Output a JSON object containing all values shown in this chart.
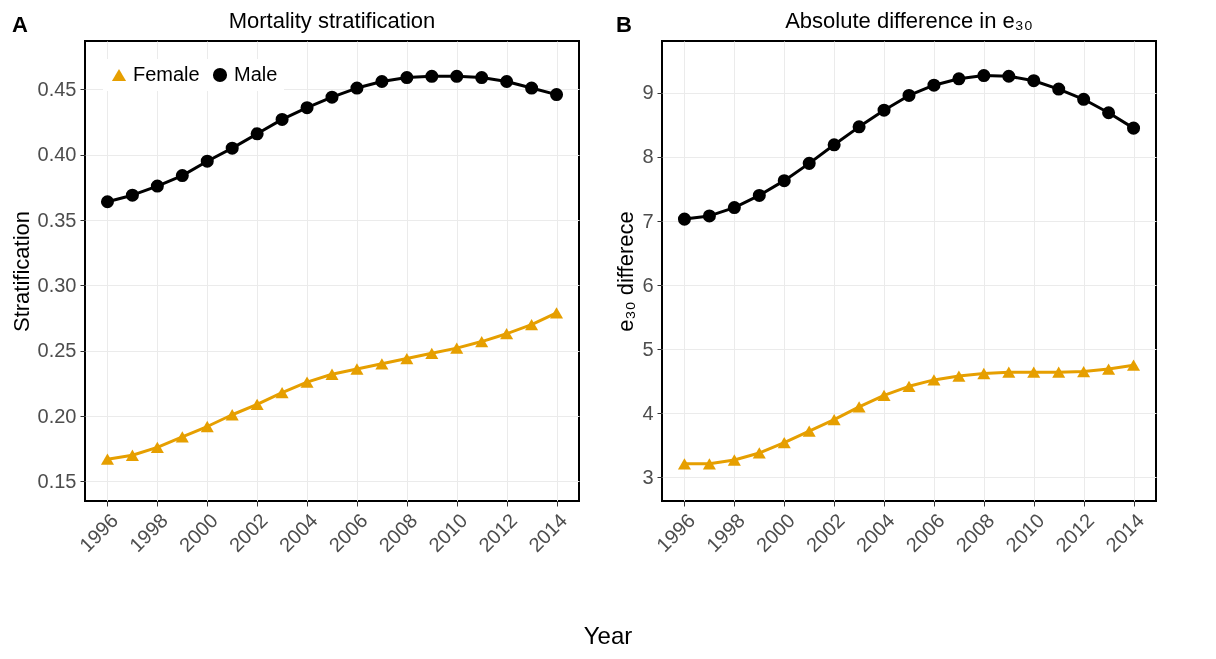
{
  "chart_data": [
    {
      "type": "line",
      "title": "Mortality stratification",
      "xlabel": "Year",
      "ylabel": "Stratification",
      "annotations": [
        "A"
      ],
      "legend": "top left",
      "grid": true,
      "x": [
        1996,
        1997,
        1998,
        1999,
        2000,
        2001,
        2002,
        2003,
        2004,
        2005,
        2006,
        2007,
        2008,
        2009,
        2010,
        2011,
        2012,
        2013,
        2014
      ],
      "xlim": [
        1995.1,
        2014.9
      ],
      "xticks": [
        1996,
        1998,
        2000,
        2002,
        2004,
        2006,
        2008,
        2010,
        2012,
        2014
      ],
      "ylim": [
        0.135,
        0.487
      ],
      "yticks": [
        0.15,
        {
          "value": 0.2,
          "label": "0.20"
        },
        0.25,
        {
          "value": 0.3,
          "label": "0.30"
        },
        0.35,
        {
          "value": 0.4,
          "label": "0.40"
        },
        0.45
      ],
      "series": [
        {
          "name": "Female",
          "color": "#e69f00",
          "marker": "triangle",
          "values": [
            0.167,
            0.17,
            0.176,
            0.184,
            0.192,
            0.201,
            0.209,
            0.218,
            0.226,
            0.232,
            0.236,
            0.24,
            0.244,
            0.248,
            0.252,
            0.257,
            0.263,
            0.27,
            0.279
          ]
        },
        {
          "name": "Male",
          "color": "#000000",
          "marker": "circle",
          "values": [
            0.364,
            0.369,
            0.376,
            0.384,
            0.395,
            0.405,
            0.416,
            0.427,
            0.436,
            0.444,
            0.451,
            0.456,
            0.459,
            0.46,
            0.46,
            0.459,
            0.456,
            0.451,
            0.446
          ]
        }
      ]
    },
    {
      "type": "line",
      "title": "Absolute difference in e₃₀",
      "ylabel": "e₃₀ differece",
      "annotations": [
        "B"
      ],
      "grid": true,
      "x": [
        1996,
        1997,
        1998,
        1999,
        2000,
        2001,
        2002,
        2003,
        2004,
        2005,
        2006,
        2007,
        2008,
        2009,
        2010,
        2011,
        2012,
        2013,
        2014
      ],
      "xlim": [
        1995.1,
        2014.9
      ],
      "xticks": [
        1996,
        1998,
        2000,
        2002,
        2004,
        2006,
        2008,
        2010,
        2012,
        2014
      ],
      "ylim": [
        2.63,
        9.81
      ],
      "yticks": [
        3,
        4,
        5,
        6,
        7,
        8,
        9
      ],
      "series": [
        {
          "color": "#e69f00",
          "marker": "triangle",
          "values": [
            3.21,
            3.21,
            3.27,
            3.38,
            3.54,
            3.72,
            3.9,
            4.1,
            4.28,
            4.42,
            4.52,
            4.58,
            4.62,
            4.64,
            4.64,
            4.64,
            4.65,
            4.69,
            4.75
          ]
        },
        {
          "color": "#000000",
          "marker": "circle",
          "values": [
            7.03,
            7.08,
            7.21,
            7.4,
            7.63,
            7.9,
            8.19,
            8.47,
            8.73,
            8.96,
            9.12,
            9.22,
            9.27,
            9.26,
            9.19,
            9.06,
            8.9,
            8.69,
            8.45
          ]
        }
      ]
    }
  ]
}
